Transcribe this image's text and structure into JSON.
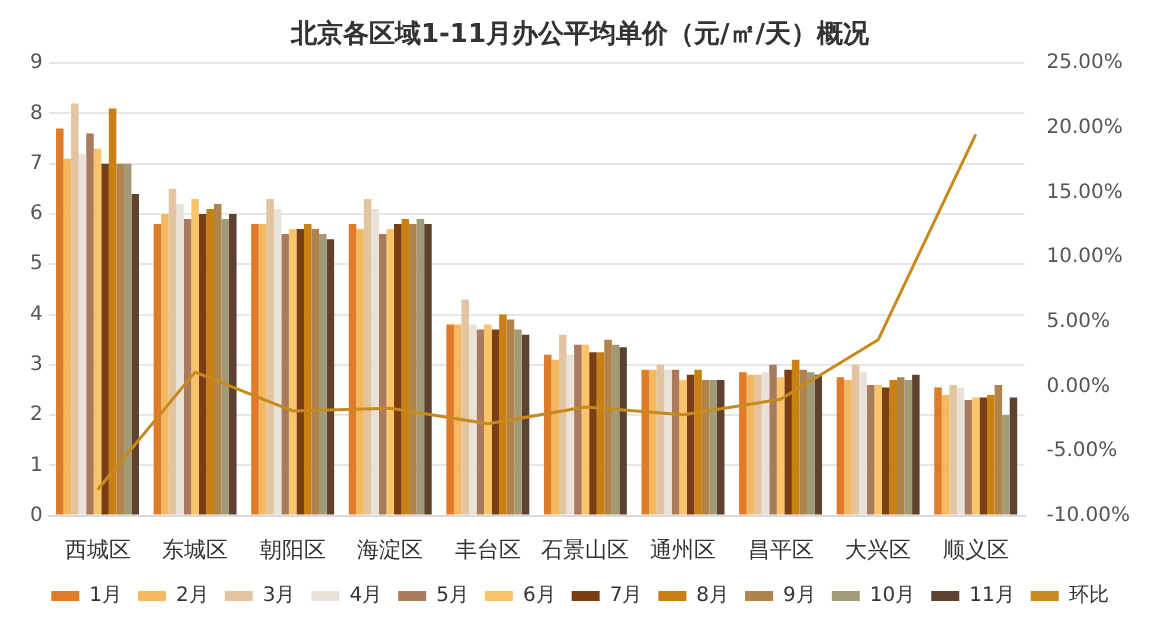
{
  "chart_data": {
    "type": "bar",
    "title": "北京各区域1-11月办公平均单价（元/㎡/天）概况",
    "categories": [
      "西城区",
      "东城区",
      "朝阳区",
      "海淀区",
      "丰台区",
      "石景山区",
      "通州区",
      "昌平区",
      "大兴区",
      "顺义区"
    ],
    "series": [
      {
        "name": "1月",
        "color": "#e07b28",
        "values": [
          7.7,
          5.8,
          5.8,
          5.8,
          3.8,
          3.2,
          2.9,
          2.85,
          2.75,
          2.55
        ]
      },
      {
        "name": "2月",
        "color": "#f4b860",
        "values": [
          7.1,
          6.0,
          5.8,
          5.7,
          3.8,
          3.1,
          2.9,
          2.8,
          2.7,
          2.4
        ]
      },
      {
        "name": "3月",
        "color": "#e2c4a0",
        "values": [
          8.2,
          6.5,
          6.3,
          6.3,
          4.3,
          3.6,
          3.0,
          2.8,
          3.0,
          2.6
        ]
      },
      {
        "name": "4月",
        "color": "#e8e2d8",
        "values": [
          7.2,
          6.2,
          6.1,
          6.1,
          3.8,
          3.2,
          2.9,
          2.85,
          2.85,
          2.55
        ]
      },
      {
        "name": "5月",
        "color": "#a97b5c",
        "values": [
          7.6,
          5.9,
          5.6,
          5.6,
          3.7,
          3.4,
          2.9,
          3.0,
          2.6,
          2.3
        ]
      },
      {
        "name": "6月",
        "color": "#fbc46a",
        "values": [
          7.3,
          6.3,
          5.7,
          5.7,
          3.8,
          3.4,
          2.7,
          2.75,
          2.6,
          2.35
        ]
      },
      {
        "name": "7月",
        "color": "#7a3e10",
        "values": [
          7.0,
          6.0,
          5.7,
          5.8,
          3.7,
          3.25,
          2.8,
          2.9,
          2.55,
          2.35
        ]
      },
      {
        "name": "8月",
        "color": "#c97f12",
        "values": [
          8.1,
          6.1,
          5.8,
          5.9,
          4.0,
          3.25,
          2.9,
          3.1,
          2.7,
          2.4
        ]
      },
      {
        "name": "9月",
        "color": "#b0834a",
        "values": [
          7.0,
          6.2,
          5.7,
          5.8,
          3.9,
          3.5,
          2.7,
          2.9,
          2.75,
          2.6
        ]
      },
      {
        "name": "10月",
        "color": "#a19a77",
        "values": [
          7.0,
          5.9,
          5.6,
          5.9,
          3.7,
          3.4,
          2.7,
          2.85,
          2.7,
          2.0
        ]
      },
      {
        "name": "11月",
        "color": "#5e4230",
        "values": [
          6.4,
          6.0,
          5.5,
          5.8,
          3.6,
          3.35,
          2.7,
          2.8,
          2.8,
          2.35
        ]
      },
      {
        "name": "环比",
        "type": "line",
        "axis": "y2",
        "color": "#c88a1e",
        "values": [
          -8.0,
          1.1,
          -1.9,
          -1.7,
          -2.9,
          -1.6,
          -2.2,
          -1.0,
          3.6,
          19.5
        ]
      }
    ],
    "ylim": [
      0,
      9
    ],
    "yticks": [
      0,
      1,
      2,
      3,
      4,
      5,
      6,
      7,
      8,
      9
    ],
    "y2lim": [
      -10,
      25
    ],
    "y2ticks": [
      {
        "value": -10,
        "label": "-10.00%"
      },
      {
        "value": -5,
        "label": "-5.00%"
      },
      {
        "value": 0,
        "label": "0.00%"
      },
      {
        "value": 5,
        "label": "5.00%"
      },
      {
        "value": 10,
        "label": "10.00%"
      },
      {
        "value": 15,
        "label": "15.00%"
      },
      {
        "value": 20,
        "label": "20.00%"
      },
      {
        "value": 25,
        "label": "25.00%"
      }
    ],
    "grid": "y",
    "legend": "bottom",
    "marker": "none"
  }
}
